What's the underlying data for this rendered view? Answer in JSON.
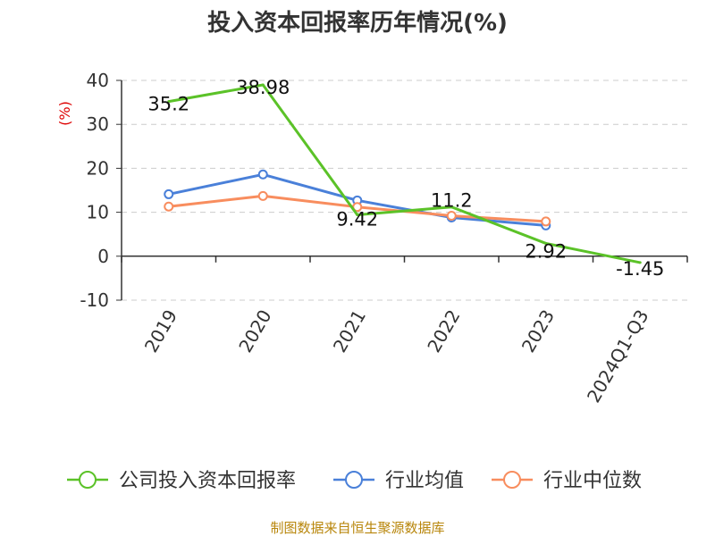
{
  "chart_data": {
    "type": "line",
    "title": "投入资本回报率历年情况(%)",
    "ylabel": "(%)",
    "categories": [
      "2019",
      "2020",
      "2021",
      "2022",
      "2023",
      "2024Q1-Q3"
    ],
    "y_ticks": [
      "40",
      "30",
      "20",
      "10",
      "0",
      "-10"
    ],
    "ylim": [
      -10,
      40
    ],
    "grid": true,
    "legend_position": "bottom",
    "series": [
      {
        "name": "公司投入资本回报率",
        "color": "#5bc228",
        "values": [
          35.2,
          38.98,
          9.42,
          11.2,
          2.92,
          -1.45
        ],
        "labels": [
          "35.2",
          "38.98",
          "9.42",
          "11.2",
          "2.92",
          "-1.45"
        ]
      },
      {
        "name": "行业均值",
        "color": "#4a80d9",
        "values": [
          14.1,
          18.6,
          12.7,
          8.8,
          7.0,
          null
        ]
      },
      {
        "name": "行业中位数",
        "color": "#f88d5e",
        "values": [
          11.3,
          13.7,
          11.2,
          9.2,
          7.9,
          null
        ]
      }
    ]
  },
  "source_note": "制图数据来自恒生聚源数据库"
}
